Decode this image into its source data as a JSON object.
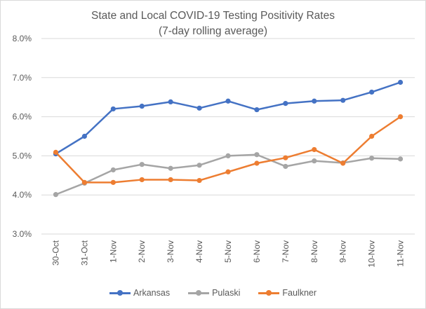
{
  "chart_data": {
    "type": "line",
    "title": "State and Local COVID-19 Testing Positivity Rates",
    "subtitle": "(7-day rolling average)",
    "xlabel": "",
    "ylabel": "",
    "categories": [
      "30-Oct",
      "31-Oct",
      "1-Nov",
      "2-Nov",
      "3-Nov",
      "4-Nov",
      "5-Nov",
      "6-Nov",
      "7-Nov",
      "8-Nov",
      "9-Nov",
      "10-Nov",
      "11-Nov"
    ],
    "ylim": [
      3.0,
      8.0
    ],
    "yticks": [
      "3.0%",
      "4.0%",
      "5.0%",
      "6.0%",
      "7.0%",
      "8.0%"
    ],
    "grid": true,
    "legend_position": "bottom",
    "series": [
      {
        "name": "Arkansas",
        "color": "#4472C4",
        "values": [
          5.05,
          5.5,
          6.2,
          6.27,
          6.38,
          6.22,
          6.4,
          6.18,
          6.34,
          6.4,
          6.42,
          6.63,
          6.88
        ]
      },
      {
        "name": "Pulaski",
        "color": "#A5A5A5",
        "values": [
          4.01,
          4.3,
          4.64,
          4.78,
          4.68,
          4.76,
          5.0,
          5.03,
          4.73,
          4.87,
          4.82,
          4.94,
          4.92
        ]
      },
      {
        "name": "Faulkner",
        "color": "#ED7D31",
        "values": [
          5.09,
          4.32,
          4.32,
          4.39,
          4.39,
          4.37,
          4.59,
          4.81,
          4.95,
          5.16,
          4.81,
          5.5,
          6.0
        ]
      }
    ]
  }
}
